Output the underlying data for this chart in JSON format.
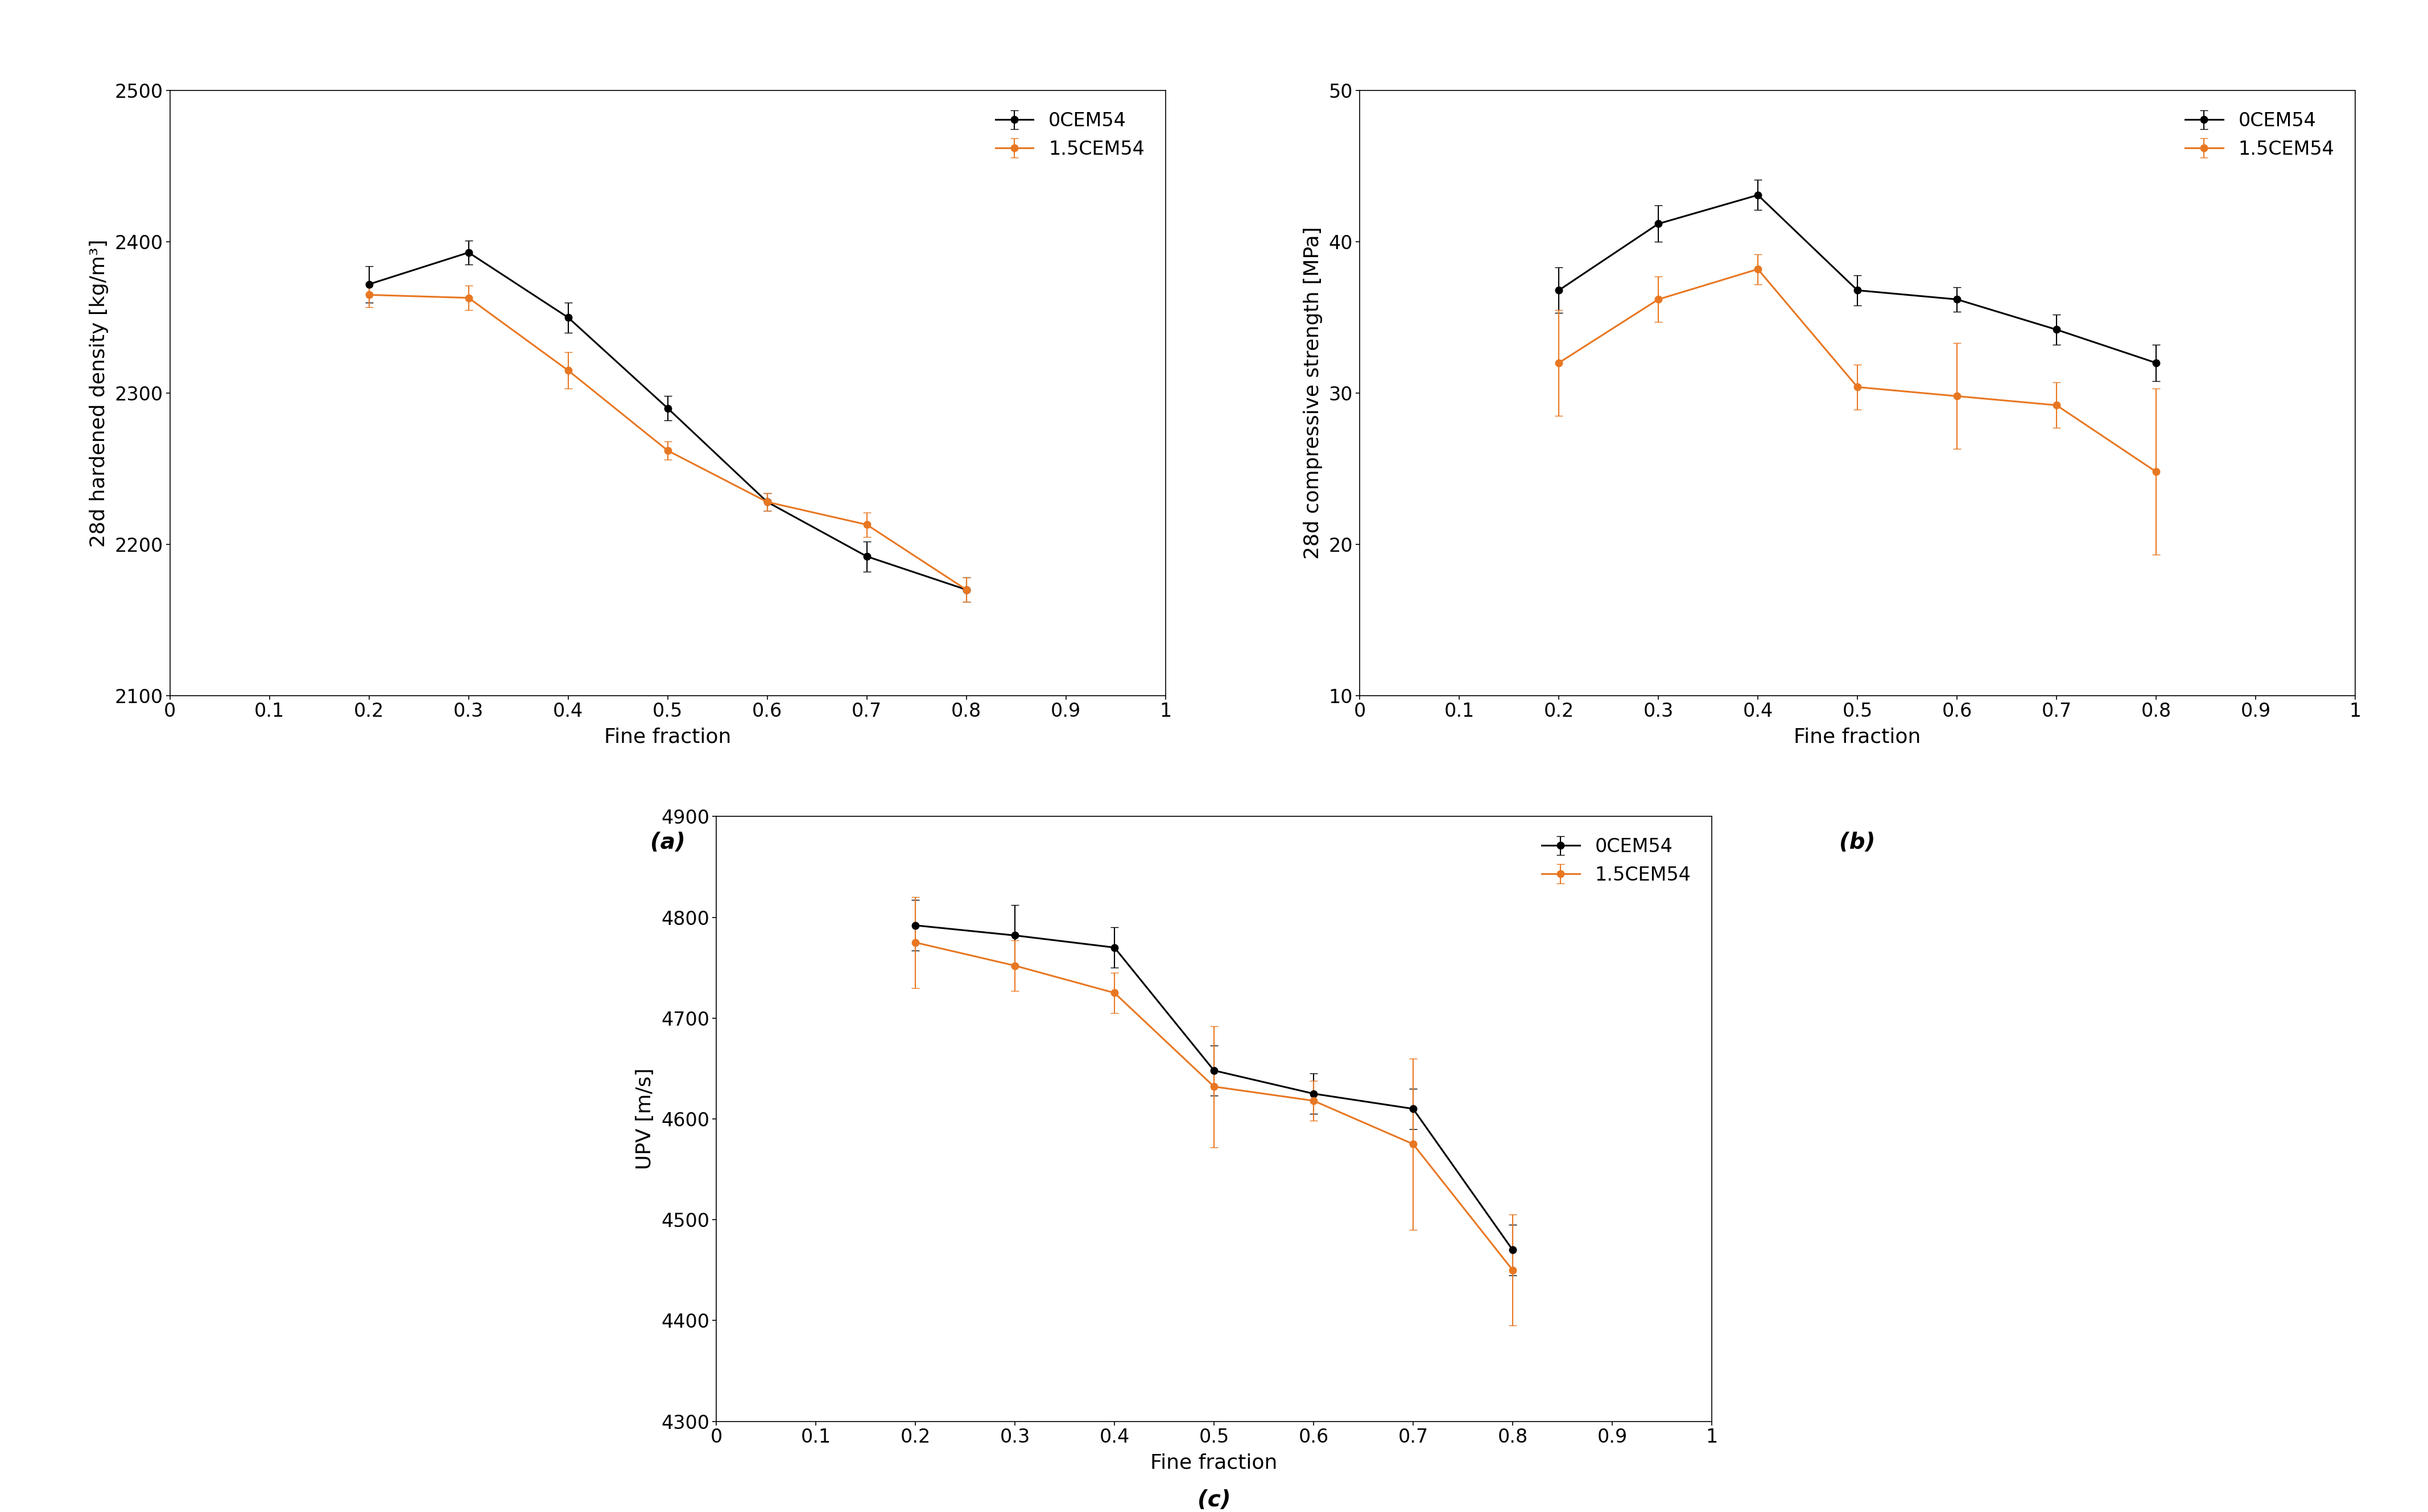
{
  "x": [
    0.2,
    0.3,
    0.4,
    0.5,
    0.6,
    0.7,
    0.8
  ],
  "a_black_y": [
    2372,
    2393,
    2350,
    2290,
    2228,
    2192,
    2170
  ],
  "a_black_err": [
    12,
    8,
    10,
    8,
    6,
    10,
    8
  ],
  "a_orange_y": [
    2365,
    2363,
    2315,
    2262,
    2228,
    2213,
    2170
  ],
  "a_orange_err": [
    8,
    8,
    12,
    6,
    6,
    8,
    8
  ],
  "b_black_y": [
    36.8,
    41.2,
    43.1,
    36.8,
    36.2,
    34.2,
    32.0
  ],
  "b_black_err": [
    1.5,
    1.2,
    1.0,
    1.0,
    0.8,
    1.0,
    1.2
  ],
  "b_orange_y": [
    32.0,
    36.2,
    38.2,
    30.4,
    29.8,
    29.2,
    24.8
  ],
  "b_orange_err": [
    3.5,
    1.5,
    1.0,
    1.5,
    3.5,
    1.5,
    5.5
  ],
  "c_black_y": [
    4792,
    4782,
    4770,
    4648,
    4625,
    4610,
    4470
  ],
  "c_black_err": [
    25,
    30,
    20,
    25,
    20,
    20,
    25
  ],
  "c_orange_y": [
    4775,
    4752,
    4725,
    4632,
    4618,
    4575,
    4450
  ],
  "c_orange_err": [
    45,
    25,
    20,
    60,
    20,
    85,
    55
  ],
  "black_color": "#000000",
  "orange_color": "#E87722",
  "a_ylabel": "28d hardened density [kg/m³]",
  "a_ylim": [
    2100,
    2500
  ],
  "a_yticks": [
    2100,
    2200,
    2300,
    2400,
    2500
  ],
  "b_ylabel": "28d compressive strength [MPa]",
  "b_ylim": [
    10,
    50
  ],
  "b_yticks": [
    10,
    20,
    30,
    40,
    50
  ],
  "c_ylabel": "UPV [m/s]",
  "c_ylim": [
    4300,
    4900
  ],
  "c_yticks": [
    4300,
    4400,
    4500,
    4600,
    4700,
    4800,
    4900
  ],
  "xlabel": "Fine fraction",
  "xlim": [
    0,
    1
  ],
  "xticks": [
    0,
    0.1,
    0.2,
    0.3,
    0.4,
    0.5,
    0.6,
    0.7,
    0.8,
    0.9,
    1.0
  ],
  "label_black": "0CEM54",
  "label_orange": "1.5CEM54",
  "label_a": "(a)",
  "label_b": "(b)",
  "label_c": "(c)",
  "fontsize_axis": 26,
  "fontsize_tick": 24,
  "fontsize_legend": 24,
  "fontsize_sublabel": 28,
  "linewidth": 2.2,
  "markersize": 9,
  "capsize": 5,
  "elinewidth": 1.5
}
